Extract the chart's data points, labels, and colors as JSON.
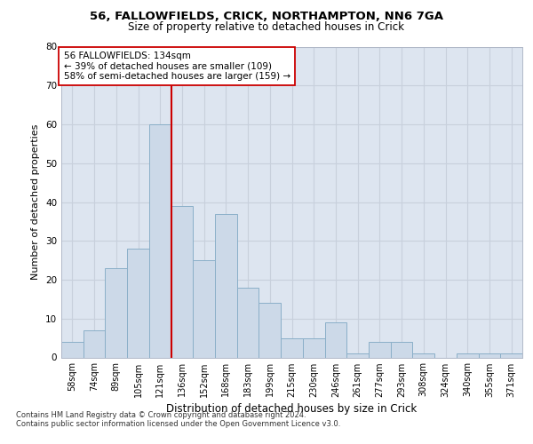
{
  "title1": "56, FALLOWFIELDS, CRICK, NORTHAMPTON, NN6 7GA",
  "title2": "Size of property relative to detached houses in Crick",
  "xlabel": "Distribution of detached houses by size in Crick",
  "ylabel": "Number of detached properties",
  "categories": [
    "58sqm",
    "74sqm",
    "89sqm",
    "105sqm",
    "121sqm",
    "136sqm",
    "152sqm",
    "168sqm",
    "183sqm",
    "199sqm",
    "215sqm",
    "230sqm",
    "246sqm",
    "261sqm",
    "277sqm",
    "293sqm",
    "308sqm",
    "324sqm",
    "340sqm",
    "355sqm",
    "371sqm"
  ],
  "values": [
    4,
    7,
    23,
    28,
    60,
    39,
    25,
    37,
    18,
    14,
    5,
    5,
    9,
    1,
    4,
    4,
    1,
    0,
    1,
    1,
    1
  ],
  "bar_color": "#ccd9e8",
  "bar_edge_color": "#8aafc8",
  "vline_color": "#cc0000",
  "annotation_text": "56 FALLOWFIELDS: 134sqm\n← 39% of detached houses are smaller (109)\n58% of semi-detached houses are larger (159) →",
  "annotation_box_color": "#ffffff",
  "annotation_box_edge_color": "#cc0000",
  "ylim": [
    0,
    80
  ],
  "yticks": [
    0,
    10,
    20,
    30,
    40,
    50,
    60,
    70,
    80
  ],
  "footer1": "Contains HM Land Registry data © Crown copyright and database right 2024.",
  "footer2": "Contains public sector information licensed under the Open Government Licence v3.0.",
  "grid_color": "#c8d0dc",
  "background_color": "#dde5f0"
}
